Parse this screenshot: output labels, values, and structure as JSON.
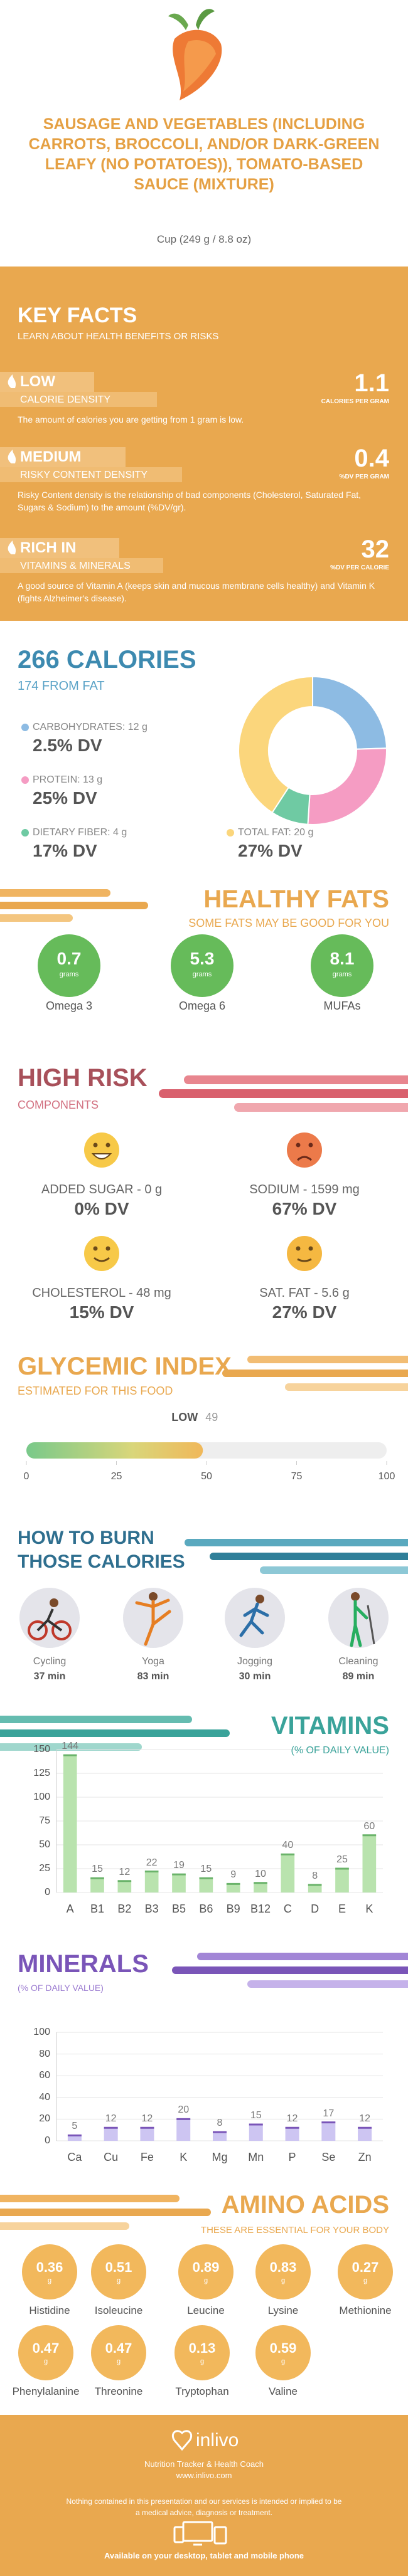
{
  "header": {
    "title": "SAUSAGE AND VEGETABLES (INCLUDING CARROTS, BROCCOLI, AND/OR DARK-GREEN LEAFY (NO POTATOES)), TOMATO-BASED SAUCE (MIXTURE)",
    "serving": "Cup (249 g / 8.8 oz)"
  },
  "key_facts": {
    "title": "KEY FACTS",
    "subtitle": "LEARN ABOUT HEALTH BENEFITS OR RISKS",
    "items": [
      {
        "level": "LOW",
        "label": "CALORIE DENSITY",
        "value": 1.1,
        "unit": "CALORIES PER GRAM",
        "description": "The amount of calories you are getting from 1 gram is low."
      },
      {
        "level": "MEDIUM",
        "label": "RISKY CONTENT DENSITY",
        "value": 0.4,
        "unit": "%DV PER GRAM",
        "description": "Risky Content density is the relationship of bad components (Cholesterol, Saturated Fat, Sugars & Sodium) to the amount (%DV/gr)."
      },
      {
        "level": "RICH IN",
        "label": "VITAMINS & MINERALS",
        "value": 32,
        "unit": "%DV PER CALORIE",
        "description": "A good source of Vitamin A (keeps skin and mucous membrane cells healthy) and Vitamin K (fights Alzheimer's disease)."
      }
    ]
  },
  "calories": {
    "title": "266 CALORIES",
    "subtitle": "174 FROM FAT"
  },
  "healthy_fats": {
    "title": "HEALTHY FATS",
    "subtitle": "SOME FATS MAY BE GOOD FOR YOU",
    "items": [
      {
        "name": "Omega 3",
        "value": 0.7,
        "unit": "grams"
      },
      {
        "name": "Omega 6",
        "value": 5.3,
        "unit": "grams"
      },
      {
        "name": "MUFAs",
        "value": 8.1,
        "unit": "grams"
      }
    ]
  },
  "high_risk": {
    "title": "HIGH RISK",
    "subtitle": "COMPONENTS",
    "items": [
      {
        "label": "ADDED SUGAR - 0 g",
        "dv": "0% DV"
      },
      {
        "label": "SODIUM - 1599 mg",
        "dv": "67% DV"
      },
      {
        "label": "CHOLESTEROL - 48 mg",
        "dv": "15% DV"
      },
      {
        "label": "SAT. FAT - 5.6 g",
        "dv": "27% DV"
      }
    ]
  },
  "burn": {
    "title_line1": "HOW TO BURN",
    "title_line2": "THOSE CALORIES",
    "activities": [
      {
        "name": "Cycling",
        "time": "37 min"
      },
      {
        "name": "Yoga",
        "time": "83 min"
      },
      {
        "name": "Jogging",
        "time": "30 min"
      },
      {
        "name": "Cleaning",
        "time": "89 min"
      }
    ]
  },
  "amino_acids": {
    "title": "AMINO ACIDS",
    "subtitle": "THESE ARE ESSENTIAL FOR YOUR BODY",
    "items": [
      {
        "name": "Histidine",
        "value": 0.36,
        "unit": "g"
      },
      {
        "name": "Isoleucine",
        "value": 0.51,
        "unit": "g"
      },
      {
        "name": "Leucine",
        "value": 0.89,
        "unit": "g"
      },
      {
        "name": "Lysine",
        "value": 0.83,
        "unit": "g"
      },
      {
        "name": "Methionine",
        "value": 0.27,
        "unit": "g"
      },
      {
        "name": "Phenylalanine",
        "value": 0.47,
        "unit": "g"
      },
      {
        "name": "Threonine",
        "value": 0.47,
        "unit": "g"
      },
      {
        "name": "Tryptophan",
        "value": 0.13,
        "unit": "g"
      },
      {
        "name": "Valine",
        "value": 0.59,
        "unit": "g"
      }
    ]
  },
  "footer": {
    "brand": "inlivo",
    "tagline": "Nutrition Tracker & Health Coach",
    "url": "www.inlivo.com",
    "disclaimer": "Nothing contained in this presentation and our services is intended or implied to be a medical advice, diagnosis or treatment.",
    "availability": "Available on your desktop, tablet and mobile phone"
  },
  "chart_data": [
    {
      "type": "donut",
      "categories": [
        "CARBOHYDRATES: 12 g",
        "PROTEIN: 13 g",
        "DIETARY FIBER: 4 g",
        "TOTAL FAT: 20 g"
      ],
      "values": [
        12,
        13,
        4,
        20
      ],
      "dv_labels": [
        "2.5% DV",
        "25% DV",
        "17% DV",
        "27% DV"
      ],
      "colors": [
        "#8dbbe3",
        "#f59cc3",
        "#6fcaa3",
        "#fbd67c"
      ]
    },
    {
      "type": "gauge",
      "title": "GLYCEMIC INDEX",
      "subtitle": "ESTIMATED FOR THIS FOOD",
      "level": "LOW",
      "value": 49,
      "xlim": [
        0,
        100
      ],
      "xticks": [
        0,
        25,
        50,
        75,
        100
      ]
    },
    {
      "type": "bar",
      "title": "VITAMINS",
      "subtitle": "(% OF DAILY VALUE)",
      "categories": [
        "A",
        "B1",
        "B2",
        "B3",
        "B5",
        "B6",
        "B9",
        "B12",
        "C",
        "D",
        "E",
        "K"
      ],
      "values": [
        144,
        15,
        12,
        22,
        19,
        15,
        9,
        10,
        40,
        8,
        25,
        60
      ],
      "color": "#b9e3ae",
      "ylim": [
        0,
        150
      ],
      "yticks": [
        0,
        25,
        50,
        75,
        100,
        125,
        150
      ],
      "grid": true
    },
    {
      "type": "bar",
      "title": "MINERALS",
      "subtitle": "(% OF DAILY VALUE)",
      "categories": [
        "Ca",
        "Cu",
        "Fe",
        "K",
        "Mg",
        "Mn",
        "P",
        "Se",
        "Zn"
      ],
      "values": [
        5,
        12,
        12,
        20,
        8,
        15,
        12,
        17,
        12
      ],
      "color": "#cdc5f2",
      "ylim": [
        0,
        100
      ],
      "yticks": [
        0,
        20,
        40,
        60,
        80,
        100
      ],
      "grid": true
    }
  ]
}
